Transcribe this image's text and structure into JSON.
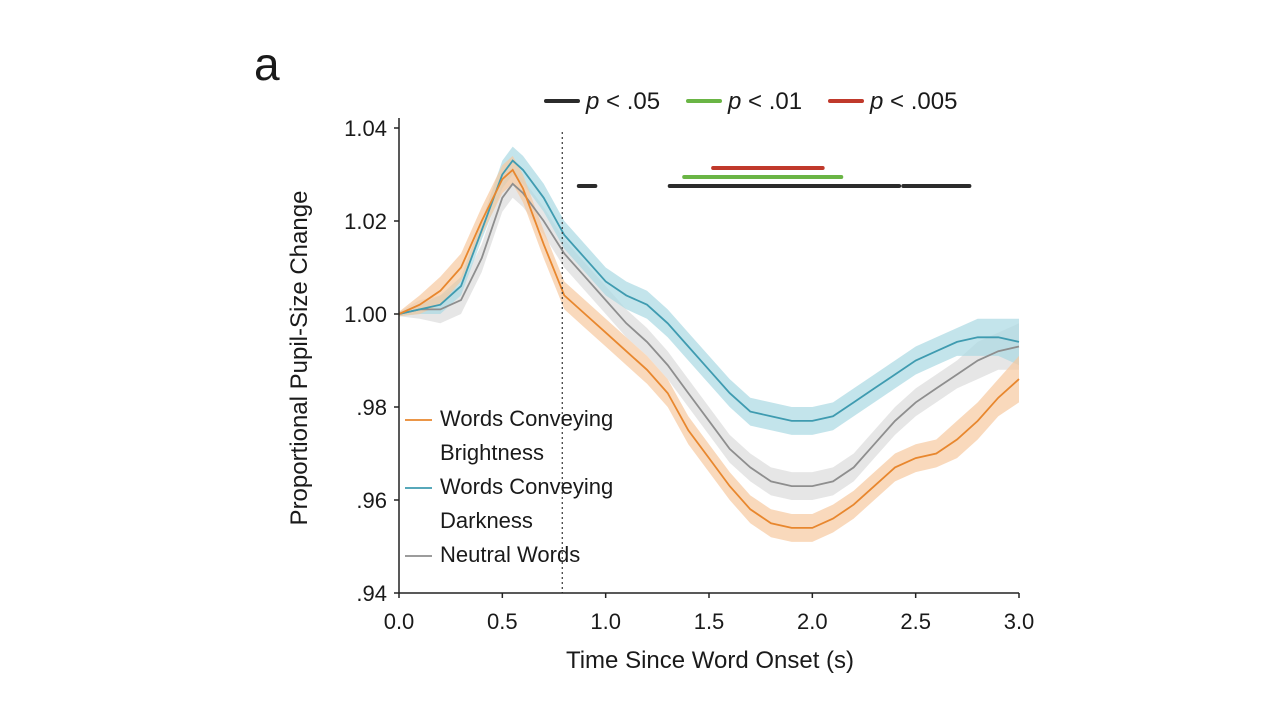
{
  "panel_label": "a",
  "colors": {
    "brightness": "#e8872e",
    "darkness": "#3f9bb0",
    "neutral": "#8e8e8e",
    "brightness_band": "#f6c9a0",
    "darkness_band": "#a9d8e2",
    "neutral_band": "#dcdcdc",
    "sig_05": "#2b2b2b",
    "sig_01": "#6ab545",
    "sig_005": "#c0392b"
  },
  "chart_data": {
    "type": "line",
    "title": "",
    "xlabel": "Time Since Word Onset (s)",
    "ylabel": "Proportional Pupil-Size Change",
    "xlim": [
      0.0,
      3.0
    ],
    "ylim": [
      0.94,
      1.04
    ],
    "x_ticks": [
      "0.0",
      "0.5",
      "1.0",
      "1.5",
      "2.0",
      "2.5",
      "3.0"
    ],
    "y_ticks": [
      "1.04",
      "1.02",
      "1.00",
      ".98",
      ".96",
      ".94"
    ],
    "y_tick_values": [
      1.04,
      1.02,
      1.0,
      0.98,
      0.96,
      0.94
    ],
    "x_tick_values": [
      0.0,
      0.5,
      1.0,
      1.5,
      2.0,
      2.5,
      3.0
    ],
    "vertical_marker_x": 0.79,
    "x": [
      0.0,
      0.1,
      0.2,
      0.3,
      0.4,
      0.5,
      0.55,
      0.6,
      0.7,
      0.8,
      0.9,
      1.0,
      1.1,
      1.2,
      1.3,
      1.4,
      1.5,
      1.6,
      1.7,
      1.8,
      1.9,
      2.0,
      2.1,
      2.2,
      2.3,
      2.4,
      2.5,
      2.6,
      2.7,
      2.8,
      2.9,
      3.0
    ],
    "series": [
      {
        "name": "Words Conveying Brightness",
        "key": "brightness",
        "values": [
          1.0,
          1.002,
          1.005,
          1.01,
          1.02,
          1.029,
          1.031,
          1.027,
          1.015,
          1.004,
          1.0,
          0.996,
          0.992,
          0.988,
          0.983,
          0.975,
          0.969,
          0.963,
          0.958,
          0.955,
          0.954,
          0.954,
          0.956,
          0.959,
          0.963,
          0.967,
          0.969,
          0.97,
          0.973,
          0.977,
          0.982,
          0.986
        ],
        "error": [
          0.0005,
          0.002,
          0.003,
          0.003,
          0.003,
          0.003,
          0.003,
          0.003,
          0.003,
          0.003,
          0.003,
          0.003,
          0.003,
          0.003,
          0.003,
          0.003,
          0.003,
          0.003,
          0.003,
          0.003,
          0.003,
          0.003,
          0.003,
          0.003,
          0.003,
          0.003,
          0.003,
          0.003,
          0.004,
          0.004,
          0.004,
          0.005
        ]
      },
      {
        "name": "Words Conveying Darkness",
        "key": "darkness",
        "values": [
          1.0,
          1.001,
          1.002,
          1.006,
          1.018,
          1.03,
          1.033,
          1.031,
          1.025,
          1.017,
          1.012,
          1.007,
          1.004,
          1.002,
          0.998,
          0.993,
          0.988,
          0.983,
          0.979,
          0.978,
          0.977,
          0.977,
          0.978,
          0.981,
          0.984,
          0.987,
          0.99,
          0.992,
          0.994,
          0.995,
          0.995,
          0.994
        ],
        "error": [
          0.0005,
          0.001,
          0.002,
          0.002,
          0.002,
          0.003,
          0.003,
          0.003,
          0.003,
          0.003,
          0.003,
          0.003,
          0.003,
          0.003,
          0.003,
          0.003,
          0.003,
          0.003,
          0.003,
          0.003,
          0.003,
          0.003,
          0.003,
          0.003,
          0.003,
          0.003,
          0.003,
          0.003,
          0.003,
          0.004,
          0.004,
          0.005
        ]
      },
      {
        "name": "Neutral Words",
        "key": "neutral",
        "values": [
          1.0,
          1.001,
          1.001,
          1.003,
          1.012,
          1.025,
          1.028,
          1.026,
          1.02,
          1.013,
          1.008,
          1.003,
          0.998,
          0.994,
          0.989,
          0.983,
          0.977,
          0.971,
          0.967,
          0.964,
          0.963,
          0.963,
          0.964,
          0.967,
          0.972,
          0.977,
          0.981,
          0.984,
          0.987,
          0.99,
          0.992,
          0.993
        ],
        "error": [
          0.0005,
          0.002,
          0.003,
          0.003,
          0.003,
          0.003,
          0.003,
          0.003,
          0.003,
          0.003,
          0.003,
          0.003,
          0.003,
          0.003,
          0.003,
          0.003,
          0.003,
          0.003,
          0.003,
          0.003,
          0.003,
          0.003,
          0.003,
          0.003,
          0.003,
          0.003,
          0.003,
          0.003,
          0.003,
          0.004,
          0.004,
          0.005
        ]
      }
    ],
    "legend": {
      "placement": "bottom-left",
      "entries": [
        {
          "key": "brightness",
          "lines": [
            "Words Conveying",
            "Brightness"
          ]
        },
        {
          "key": "darkness",
          "lines": [
            "Words Conveying",
            "Darkness"
          ]
        },
        {
          "key": "neutral",
          "lines": [
            "Neutral Words"
          ]
        }
      ]
    },
    "significance": {
      "legend": [
        {
          "key": "sig_05",
          "p": "p",
          "rest": " < .05"
        },
        {
          "key": "sig_01",
          "p": "p",
          "rest": " < .01"
        },
        {
          "key": "sig_005",
          "p": "p",
          "rest": " < .005"
        }
      ],
      "bars": [
        {
          "level": "sig_05",
          "x0": 0.87,
          "x1": 0.95,
          "row": 0
        },
        {
          "level": "sig_05",
          "x0": 1.31,
          "x1": 2.42,
          "row": 0
        },
        {
          "level": "sig_05",
          "x0": 2.44,
          "x1": 2.76,
          "row": 0
        },
        {
          "level": "sig_01",
          "x0": 1.38,
          "x1": 2.14,
          "row": 1
        },
        {
          "level": "sig_005",
          "x0": 1.52,
          "x1": 2.05,
          "row": 2
        }
      ]
    }
  }
}
